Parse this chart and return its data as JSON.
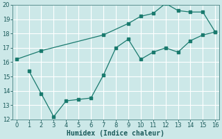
{
  "xlabel": "Humidex (Indice chaleur)",
  "background_color": "#cce8e8",
  "grid_color": "#ffffff",
  "line_color": "#1a7a6e",
  "series1_x": [
    0,
    2,
    7,
    9,
    10,
    11,
    12,
    13,
    14,
    15,
    16
  ],
  "series1_y": [
    16.2,
    16.8,
    17.9,
    18.7,
    19.2,
    19.4,
    20.1,
    19.6,
    19.5,
    19.5,
    18.1
  ],
  "series2_x": [
    1,
    2,
    3,
    4,
    5,
    6,
    7,
    8,
    9,
    10,
    11,
    12,
    13,
    14,
    15,
    16
  ],
  "series2_y": [
    15.4,
    13.8,
    12.2,
    13.3,
    13.4,
    13.5,
    15.1,
    17.0,
    17.6,
    16.2,
    16.7,
    17.0,
    16.7,
    17.5,
    17.9,
    18.1
  ],
  "ylim": [
    12,
    20
  ],
  "xlim": [
    -0.3,
    16.3
  ],
  "yticks": [
    12,
    13,
    14,
    15,
    16,
    17,
    18,
    19,
    20
  ],
  "xticks": [
    0,
    1,
    2,
    3,
    4,
    5,
    6,
    7,
    8,
    9,
    10,
    11,
    12,
    13,
    14,
    15,
    16
  ],
  "tick_fontsize": 6,
  "xlabel_fontsize": 7
}
